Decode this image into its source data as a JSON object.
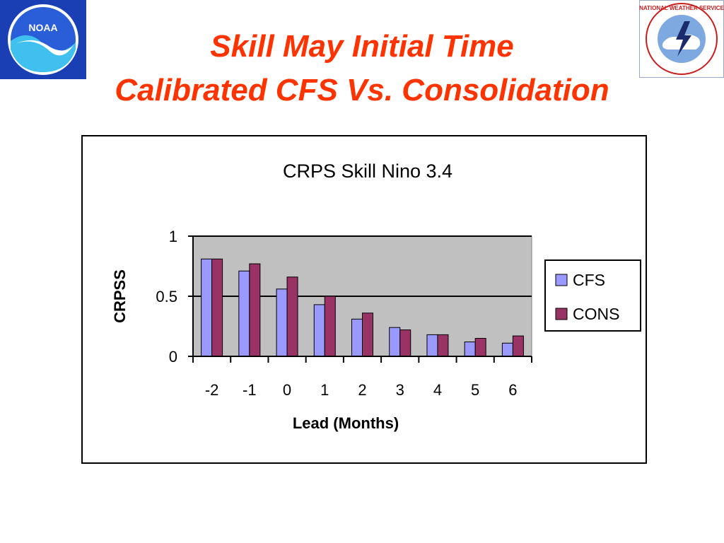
{
  "slide": {
    "title_line_1": "Skill  May Initial Time",
    "title_line_2": "Calibrated CFS Vs. Consolidation",
    "title_color": "#ff3300"
  },
  "logos": {
    "left": {
      "text": "NOAA",
      "icon": "noaa-logo"
    },
    "right": {
      "text": "NATIONAL WEATHER SERVICE",
      "icon": "nws-logo"
    }
  },
  "chart_data": {
    "type": "bar",
    "title": "CRPS Skill  Nino 3.4",
    "xlabel": "Lead (Months)",
    "ylabel": "CRPSS",
    "categories": [
      "-2",
      "-1",
      "0",
      "1",
      "2",
      "3",
      "4",
      "5",
      "6"
    ],
    "ylim": [
      0,
      1
    ],
    "yticks": [
      0,
      0.5,
      1
    ],
    "ytick_labels": [
      "0",
      "0.5",
      "1"
    ],
    "grid": true,
    "plot_background": "#c0c0c0",
    "legend_position": "right",
    "series": [
      {
        "name": "CFS",
        "color": "#9999ff",
        "values": [
          0.81,
          0.71,
          0.56,
          0.43,
          0.31,
          0.24,
          0.18,
          0.12,
          0.11
        ]
      },
      {
        "name": "CONS",
        "color": "#993366",
        "values": [
          0.81,
          0.77,
          0.66,
          0.5,
          0.36,
          0.22,
          0.18,
          0.15,
          0.17
        ]
      }
    ]
  }
}
